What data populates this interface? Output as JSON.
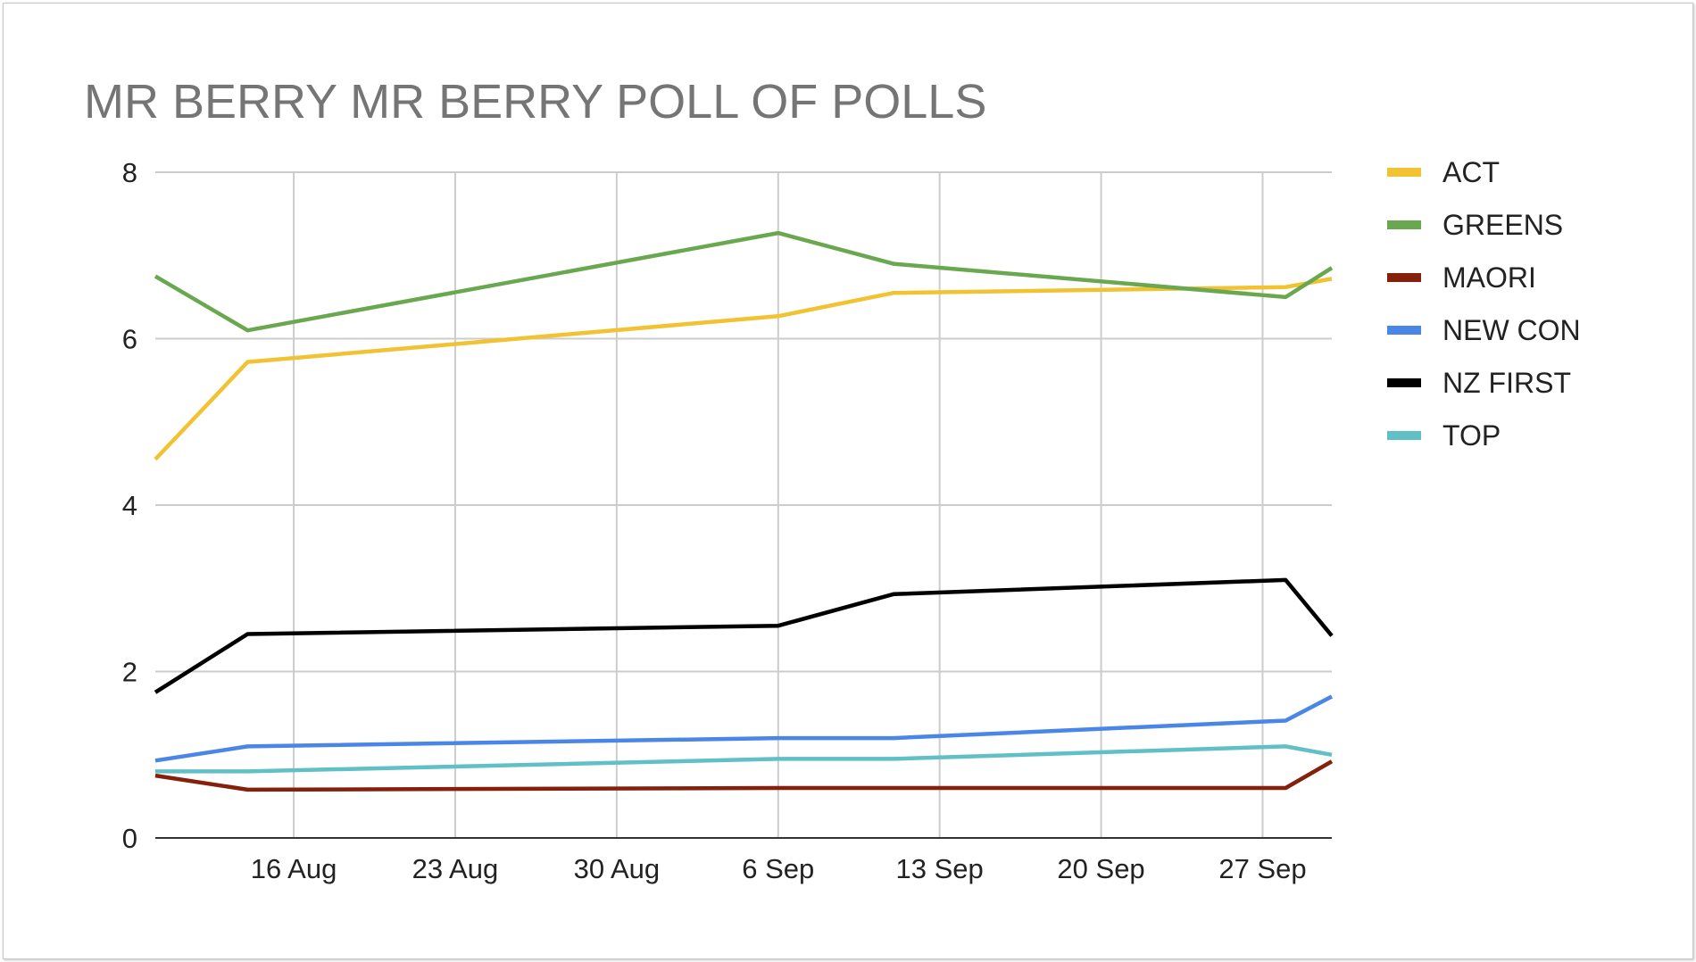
{
  "chart_data": {
    "type": "line",
    "title": "MR BERRY MR BERRY POLL OF POLLS",
    "xlabel": "",
    "ylabel": "",
    "ylim": [
      0,
      8
    ],
    "y_ticks": [
      "0",
      "2",
      "4",
      "6",
      "8"
    ],
    "x_ticks": [
      "16 Aug",
      "23 Aug",
      "30 Aug",
      "6 Sep",
      "13 Sep",
      "20 Sep",
      "27 Sep"
    ],
    "x_range": [
      "2023-08-10",
      "2023-09-30"
    ],
    "grid": true,
    "legend_position": "right",
    "series": [
      {
        "name": "ACT",
        "color": "#f1c232",
        "x": [
          "2023-08-10",
          "2023-08-14",
          "2023-09-06",
          "2023-09-11",
          "2023-09-28",
          "2023-09-30"
        ],
        "values": [
          4.55,
          5.72,
          6.27,
          6.55,
          6.62,
          6.72
        ]
      },
      {
        "name": "GREENS",
        "color": "#6aa84f",
        "x": [
          "2023-08-10",
          "2023-08-14",
          "2023-09-06",
          "2023-09-11",
          "2023-09-28",
          "2023-09-30"
        ],
        "values": [
          6.75,
          6.1,
          7.27,
          6.9,
          6.5,
          6.85
        ]
      },
      {
        "name": "MAORI",
        "color": "#85200c",
        "x": [
          "2023-08-10",
          "2023-08-14",
          "2023-09-06",
          "2023-09-11",
          "2023-09-28",
          "2023-09-30"
        ],
        "values": [
          0.75,
          0.58,
          0.6,
          0.6,
          0.6,
          0.92
        ]
      },
      {
        "name": "NEW CON",
        "color": "#4a86e8",
        "x": [
          "2023-08-10",
          "2023-08-14",
          "2023-09-06",
          "2023-09-11",
          "2023-09-28",
          "2023-09-30"
        ],
        "values": [
          0.93,
          1.1,
          1.2,
          1.2,
          1.41,
          1.7
        ]
      },
      {
        "name": "NZ FIRST",
        "color": "#000000",
        "x": [
          "2023-08-10",
          "2023-08-14",
          "2023-09-06",
          "2023-09-11",
          "2023-09-28",
          "2023-09-30"
        ],
        "values": [
          1.75,
          2.45,
          2.55,
          2.93,
          3.1,
          2.43
        ]
      },
      {
        "name": "TOP",
        "color": "#61c0c6",
        "x": [
          "2023-08-10",
          "2023-08-14",
          "2023-09-06",
          "2023-09-11",
          "2023-09-28",
          "2023-09-30"
        ],
        "values": [
          0.8,
          0.8,
          0.95,
          0.95,
          1.1,
          1.0
        ]
      }
    ]
  }
}
